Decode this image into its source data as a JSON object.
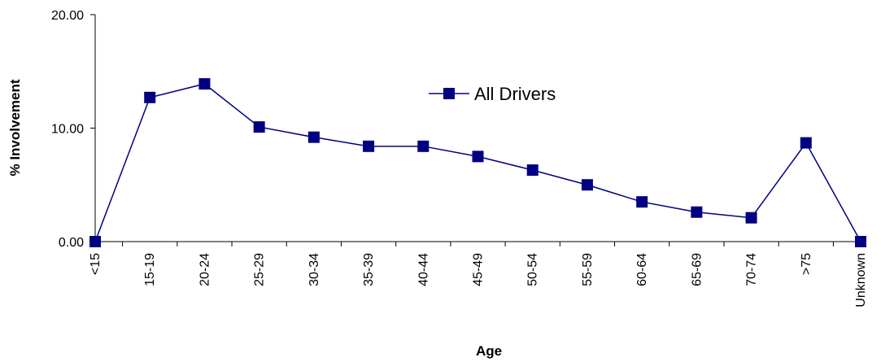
{
  "chart_data": {
    "type": "line",
    "title": "",
    "xlabel": "Age",
    "ylabel": "% Involvement",
    "ylim": [
      0,
      20
    ],
    "yticks": [
      "0.00",
      "10.00",
      "20.00"
    ],
    "grid": false,
    "legend_position": "top-center",
    "categories": [
      "<15",
      "15-19",
      "20-24",
      "25-29",
      "30-34",
      "35-39",
      "40-44",
      "45-49",
      "50-54",
      "55-59",
      "60-64",
      "65-69",
      "70-74",
      ">75",
      "Unknown"
    ],
    "series": [
      {
        "name": "All Drivers",
        "color": "#000080",
        "marker": "square",
        "values": [
          0.0,
          12.7,
          13.9,
          10.1,
          9.2,
          8.4,
          8.4,
          7.5,
          6.3,
          5.0,
          3.5,
          2.6,
          2.1,
          8.7,
          0.0
        ]
      }
    ]
  }
}
